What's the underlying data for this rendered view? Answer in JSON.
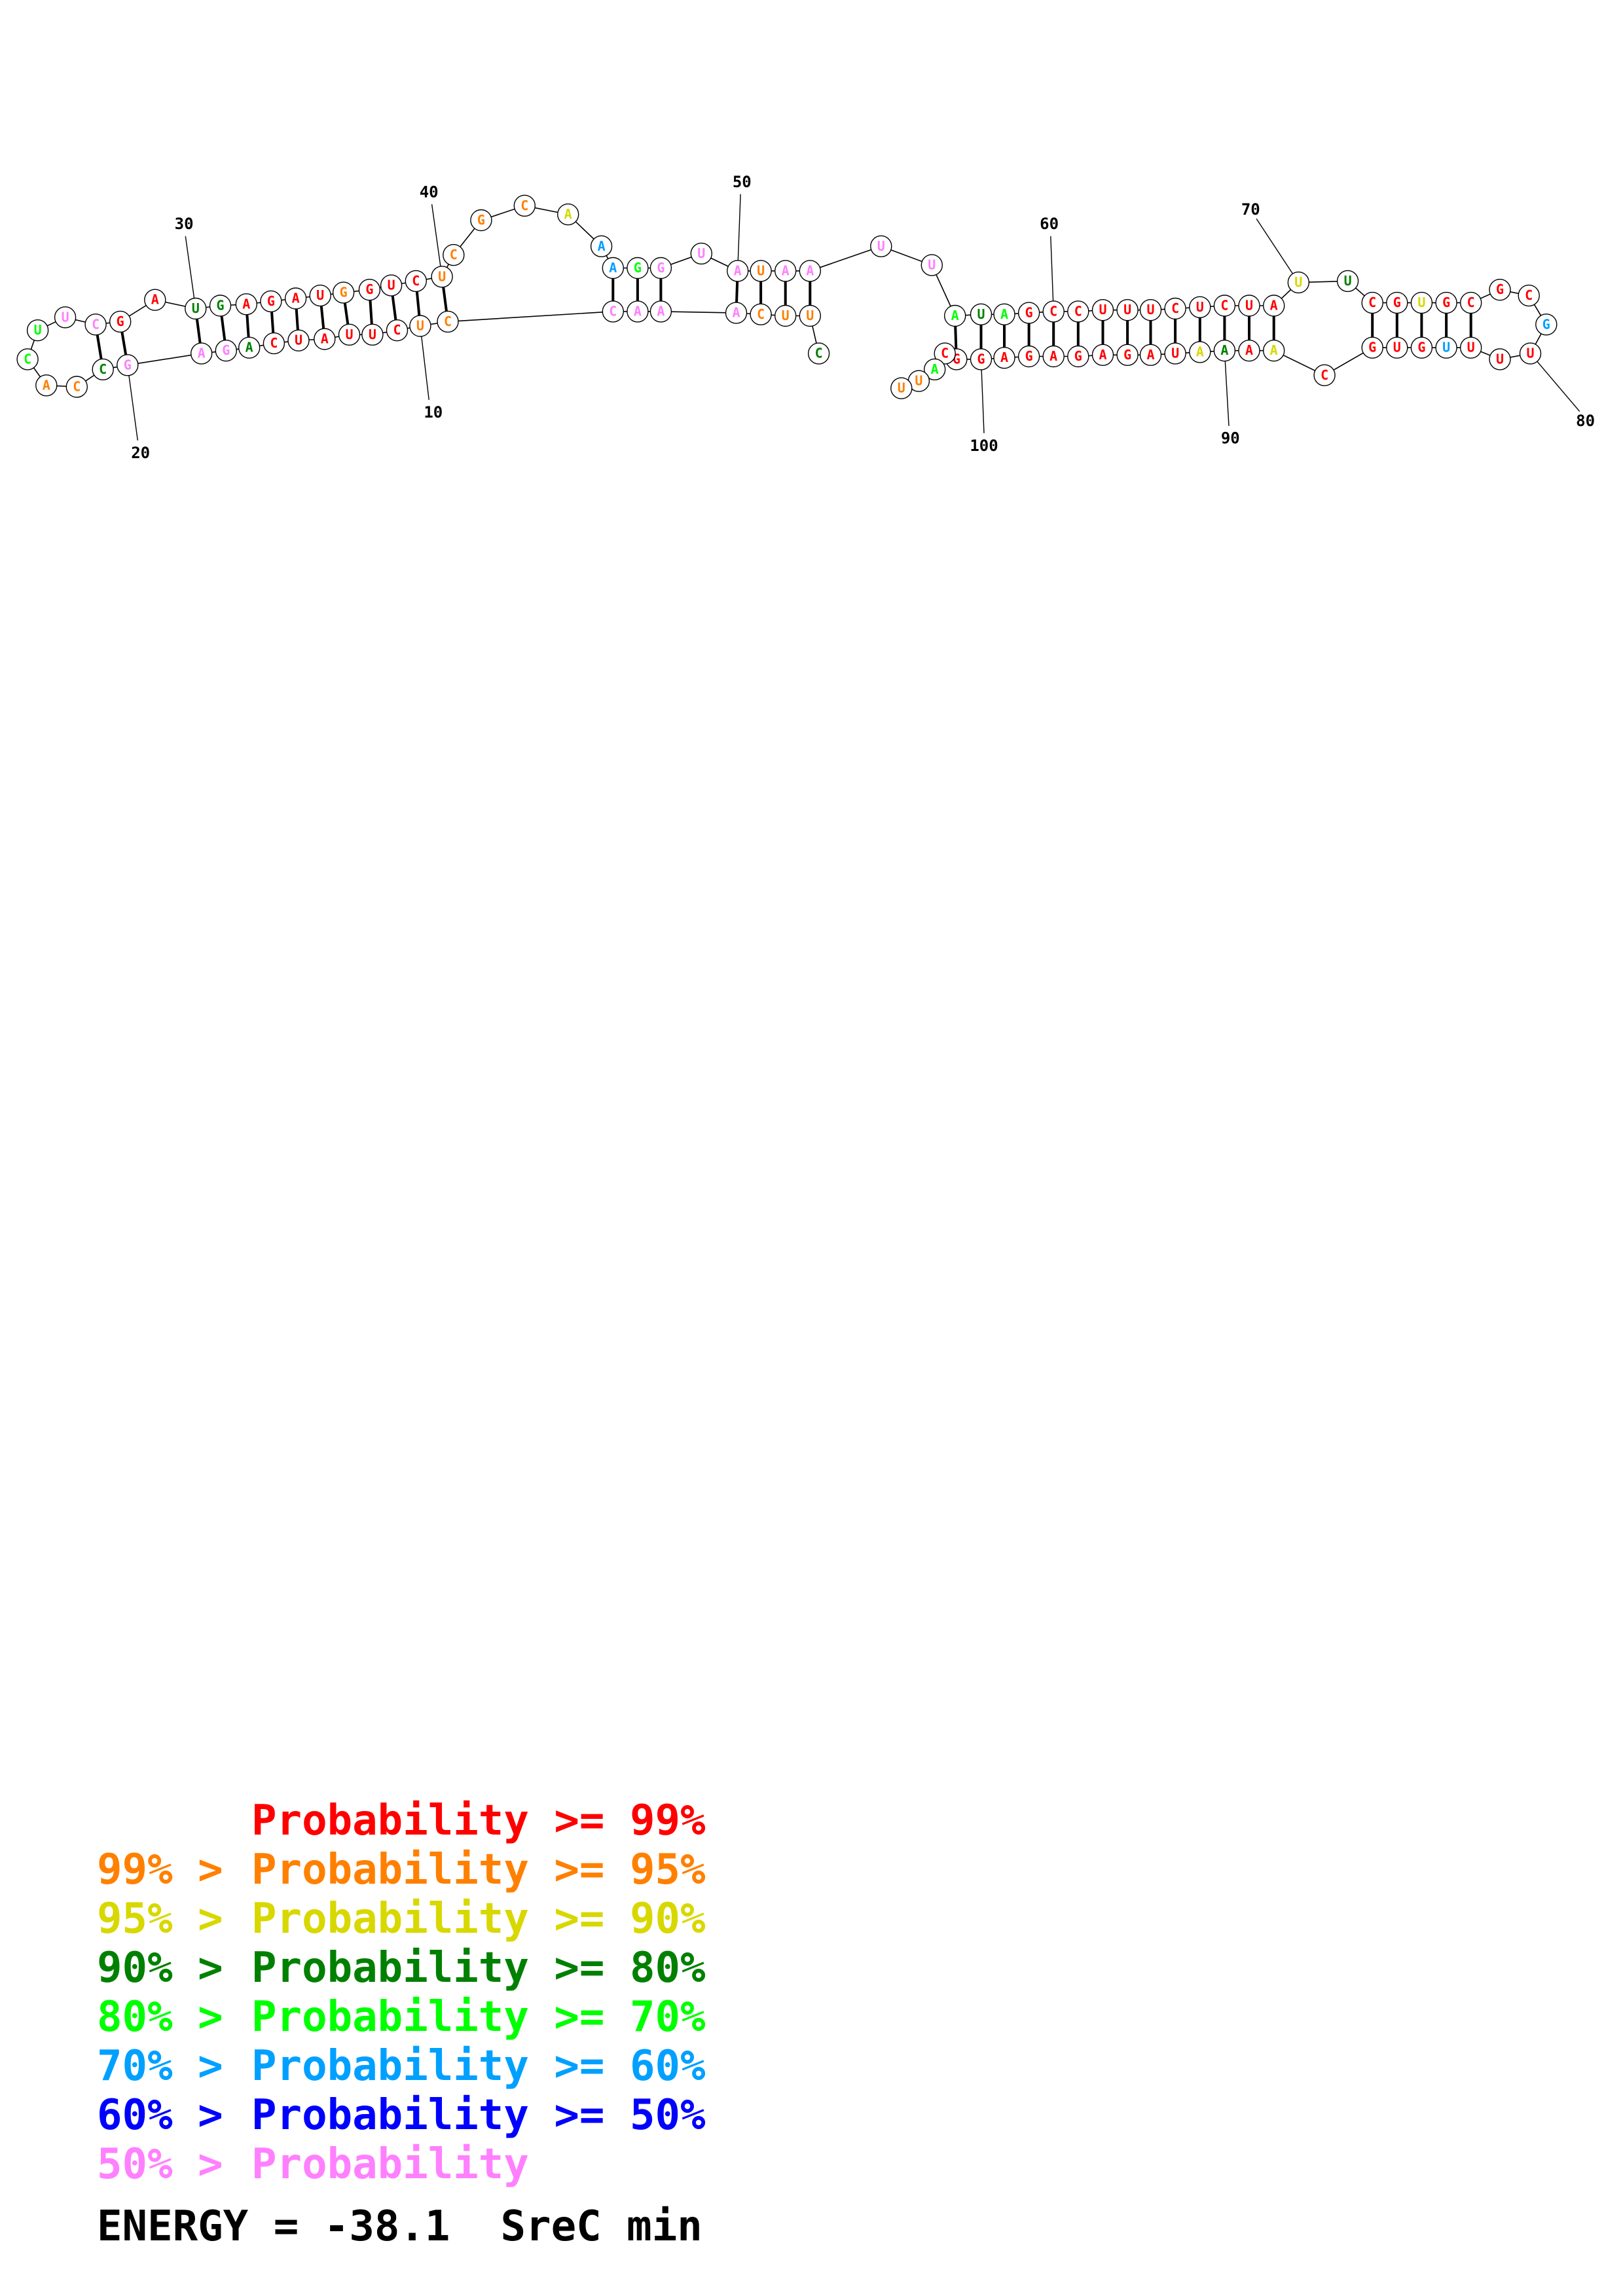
{
  "structure": {
    "sequence": "CUCUUCCUUAGUAGAUGGUCUCUACUGUCAACAACUGUUAAAAUAUUCCAAGCCUUUCUCUAUUUCGUUGCGUGCUUUGCGUCAAAAGAGAGAGGCAUUUUCAAACCAAUCGAGA",
    "bases": [
      {
        "base": "C",
        "color": "#ff8000"
      },
      {
        "base": "U",
        "color": "#ff8000"
      },
      {
        "base": "C",
        "color": "#ff0000"
      },
      {
        "base": "U",
        "color": "#ff0000"
      },
      {
        "base": "U",
        "color": "#ff0000"
      },
      {
        "base": "A",
        "color": "#ff0000"
      },
      {
        "base": "U",
        "color": "#ff0000"
      },
      {
        "base": "C",
        "color": "#ff0000"
      },
      {
        "base": "A",
        "color": "#008000"
      },
      {
        "base": "G",
        "color": "#ff80ff"
      },
      {
        "base": "A",
        "color": "#ff80ff"
      },
      {
        "base": "G",
        "color": "#ff80ff"
      },
      {
        "base": "C",
        "color": "#008000"
      },
      {
        "base": "C",
        "color": "#ff8000"
      },
      {
        "base": "A",
        "color": "#ff8000"
      },
      {
        "base": "C",
        "color": "#00ff00"
      },
      {
        "base": "U",
        "color": "#00ff00"
      },
      {
        "base": "U",
        "color": "#ff80ff"
      },
      {
        "base": "C",
        "color": "#ff80ff"
      },
      {
        "base": "G",
        "color": "#ff0000"
      },
      {
        "base": "A",
        "color": "#ff0000"
      },
      {
        "base": "U",
        "color": "#008000"
      },
      {
        "base": "G",
        "color": "#008000"
      },
      {
        "base": "A",
        "color": "#ff0000"
      },
      {
        "base": "G",
        "color": "#ff0000"
      },
      {
        "base": "A",
        "color": "#ff0000"
      },
      {
        "base": "U",
        "color": "#ff0000"
      },
      {
        "base": "G",
        "color": "#ff8000"
      },
      {
        "base": "G",
        "color": "#ff0000"
      },
      {
        "base": "U",
        "color": "#ff0000"
      },
      {
        "base": "C",
        "color": "#ff0000"
      },
      {
        "base": "U",
        "color": "#ff8000"
      },
      {
        "base": "C",
        "color": "#ff8000"
      },
      {
        "base": "G",
        "color": "#ff8000"
      },
      {
        "base": "C",
        "color": "#ff8000"
      },
      {
        "base": "A",
        "color": "#d8d800"
      },
      {
        "base": "A",
        "color": "#00a0ff"
      },
      {
        "base": "A",
        "color": "#00a0ff"
      },
      {
        "base": "G",
        "color": "#00ff00"
      },
      {
        "base": "G",
        "color": "#ff80ff"
      },
      {
        "base": "U",
        "color": "#ff80ff"
      },
      {
        "base": "A",
        "color": "#ff80ff"
      },
      {
        "base": "U",
        "color": "#ff8000"
      },
      {
        "base": "A",
        "color": "#ff80ff"
      },
      {
        "base": "A",
        "color": "#ff80ff"
      },
      {
        "base": "U",
        "color": "#ff80ff"
      },
      {
        "base": "U",
        "color": "#ff80ff"
      },
      {
        "base": "A",
        "color": "#00ff00"
      },
      {
        "base": "U",
        "color": "#008000"
      },
      {
        "base": "A",
        "color": "#00ff00"
      },
      {
        "base": "G",
        "color": "#ff0000"
      },
      {
        "base": "C",
        "color": "#ff0000"
      },
      {
        "base": "C",
        "color": "#ff0000"
      },
      {
        "base": "U",
        "color": "#ff0000"
      },
      {
        "base": "U",
        "color": "#ff0000"
      },
      {
        "base": "U",
        "color": "#ff0000"
      },
      {
        "base": "C",
        "color": "#ff0000"
      },
      {
        "base": "U",
        "color": "#ff0000"
      },
      {
        "base": "C",
        "color": "#ff0000"
      },
      {
        "base": "U",
        "color": "#ff0000"
      },
      {
        "base": "A",
        "color": "#ff0000"
      },
      {
        "base": "U",
        "color": "#d8d800"
      },
      {
        "base": "U",
        "color": "#008000"
      },
      {
        "base": "C",
        "color": "#ff0000"
      },
      {
        "base": "G",
        "color": "#ff0000"
      },
      {
        "base": "U",
        "color": "#d8d800"
      },
      {
        "base": "G",
        "color": "#ff0000"
      },
      {
        "base": "C",
        "color": "#ff0000"
      },
      {
        "base": "G",
        "color": "#ff0000"
      },
      {
        "base": "C",
        "color": "#ff0000"
      },
      {
        "base": "G",
        "color": "#00a0ff"
      },
      {
        "base": "U",
        "color": "#ff0000"
      },
      {
        "base": "U",
        "color": "#ff0000"
      },
      {
        "base": "U",
        "color": "#ff0000"
      },
      {
        "base": "U",
        "color": "#00a0ff"
      },
      {
        "base": "G",
        "color": "#ff0000"
      },
      {
        "base": "U",
        "color": "#ff0000"
      },
      {
        "base": "G",
        "color": "#ff0000"
      },
      {
        "base": "C",
        "color": "#ff0000"
      },
      {
        "base": "A",
        "color": "#d8d800"
      },
      {
        "base": "A",
        "color": "#ff0000"
      },
      {
        "base": "A",
        "color": "#008000"
      },
      {
        "base": "A",
        "color": "#d8d800"
      },
      {
        "base": "U",
        "color": "#ff0000"
      },
      {
        "base": "A",
        "color": "#ff0000"
      },
      {
        "base": "G",
        "color": "#ff0000"
      },
      {
        "base": "A",
        "color": "#ff0000"
      },
      {
        "base": "G",
        "color": "#ff0000"
      },
      {
        "base": "A",
        "color": "#ff0000"
      },
      {
        "base": "G",
        "color": "#ff0000"
      },
      {
        "base": "A",
        "color": "#ff0000"
      },
      {
        "base": "G",
        "color": "#ff0000"
      },
      {
        "base": "G",
        "color": "#ff0000"
      },
      {
        "base": "C",
        "color": "#ff0000"
      },
      {
        "base": "A",
        "color": "#00ff00"
      },
      {
        "base": "U",
        "color": "#ff8000"
      },
      {
        "base": "U",
        "color": "#ff8000"
      },
      {
        "base": "U",
        "color": "#ff8000"
      },
      {
        "base": "U",
        "color": "#ff8000"
      },
      {
        "base": "C",
        "color": "#ff8000"
      },
      {
        "base": "A",
        "color": "#ff80ff"
      },
      {
        "base": "A",
        "color": "#ff80ff"
      },
      {
        "base": "A",
        "color": "#ff80ff"
      },
      {
        "base": "C",
        "color": "#ff80ff"
      },
      {
        "base": "C",
        "color": "#008000"
      },
      {
        "base": "A",
        "color": "#00ff00"
      },
      {
        "base": "A",
        "color": "#d8d800"
      },
      {
        "base": "U",
        "color": "#00a0ff"
      },
      {
        "base": "C",
        "color": "#00ff00"
      },
      {
        "base": "G",
        "color": "#00ff00"
      },
      {
        "base": "A",
        "color": "#ff80ff"
      },
      {
        "base": "G",
        "color": "#ff80ff"
      },
      {
        "base": "A",
        "color": "#ff0000"
      }
    ],
    "tick_labels": [
      "10",
      "20",
      "30",
      "40",
      "50",
      "60",
      "70",
      "80",
      "90",
      "100"
    ]
  },
  "legend": [
    {
      "lower": "",
      "upper": "Probability >= 99%",
      "color": "#ff0000"
    },
    {
      "lower": "99% > ",
      "upper": "Probability >= 95%",
      "color": "#ff8000"
    },
    {
      "lower": "95% > ",
      "upper": "Probability >= 90%",
      "color": "#d8d800"
    },
    {
      "lower": "90% > ",
      "upper": "Probability >= 80%",
      "color": "#008000"
    },
    {
      "lower": "80% > ",
      "upper": "Probability >= 70%",
      "color": "#00ff00"
    },
    {
      "lower": "70% > ",
      "upper": "Probability >= 60%",
      "color": "#00a0ff"
    },
    {
      "lower": "60% > ",
      "upper": "Probability >= 50%",
      "color": "#0000ff"
    },
    {
      "lower": "50% > ",
      "upper": "Probability",
      "color": "#ff80ff"
    }
  ],
  "energy": {
    "text": "ENERGY = -38.1  SreC min"
  }
}
